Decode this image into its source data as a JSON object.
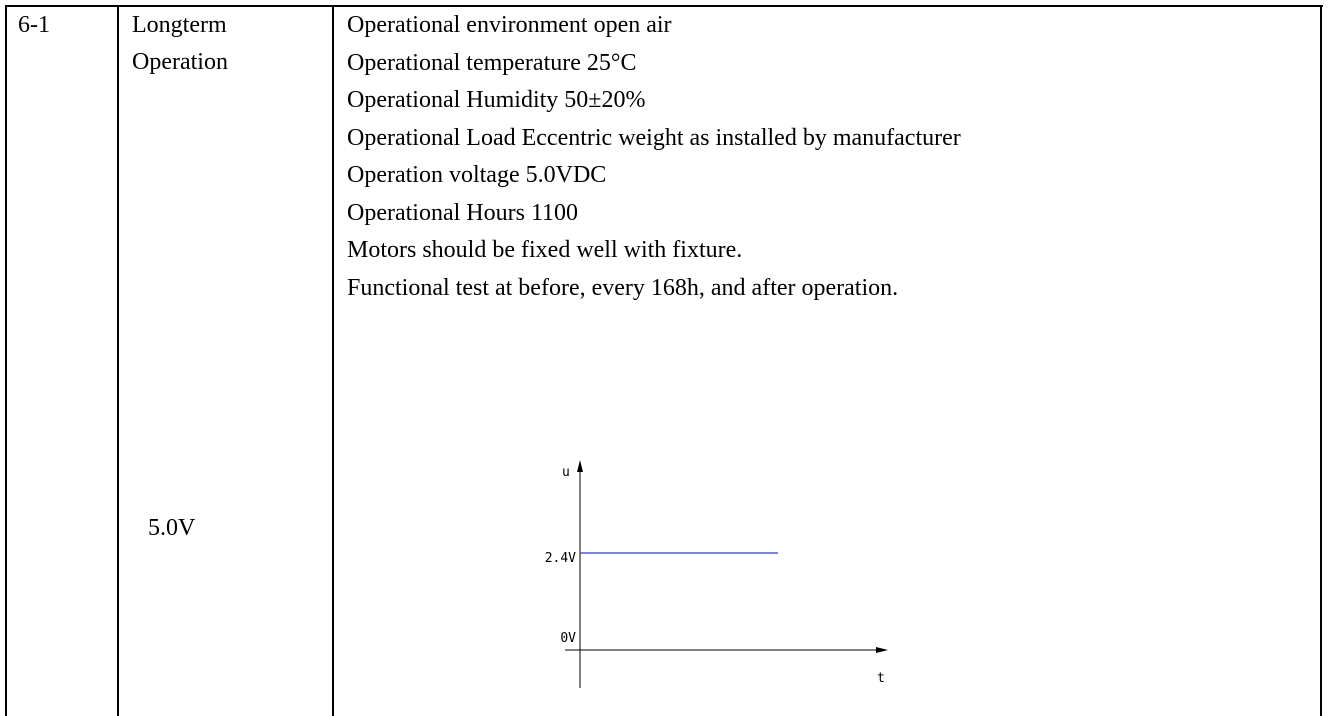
{
  "table": {
    "rows": [
      {
        "id": "6-1",
        "item": [
          "Longterm",
          "Operation"
        ],
        "conditions": [
          "Operational environment open air",
          "Operational temperature 25°C",
          "Operational Humidity 50±20%",
          "Operational Load Eccentric weight as installed by manufacturer",
          "Operation voltage 5.0VDC",
          "Operational Hours 1100",
          "Motors should be fixed well with fixture.",
          "Functional test at before, every 168h, and after operation."
        ],
        "voltage": "5.0V",
        "diagram": {
          "y_axis": "u",
          "x_axis": "t",
          "level_label": "2.4V",
          "zero_label": "0V"
        }
      }
    ]
  }
}
